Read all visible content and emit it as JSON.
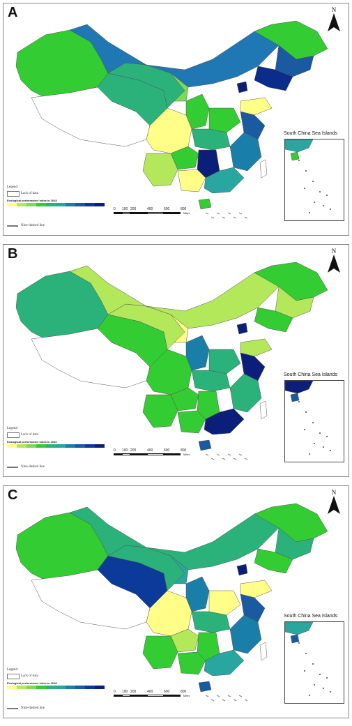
{
  "panels": [
    {
      "letter": "A",
      "legend_title": "Ecological performance index in 2015",
      "colors": {
        "xinjiang": "#33cc33",
        "tibet": "#ffffff",
        "qinghai": "#2ab27a",
        "gansu": "#2ab27a",
        "inner_mongolia": "#1f78b4",
        "heilongjiang": "#33cc33",
        "jilin": "#1a5aa0",
        "liaoning": "#0b2c8a",
        "sichuan": "#ffff88",
        "yunnan": "#b2e85a",
        "guangxi": "#ffff88",
        "guizhou": "#33cc33",
        "hunan": "#0b1f7a",
        "guangdong": "#2aa6a0",
        "hainan": "#33cc33",
        "east": "#1a7fa8",
        "shandong": "#ffff88",
        "jiangsu": "#1a5aa0",
        "taiwan": "#ffffff",
        "ningxia": "#7ed957",
        "shaanxi": "#33cc33",
        "henan": "#33cc33",
        "hubei": "#2ab27a",
        "beijing": "#0b1f7a"
      }
    },
    {
      "letter": "B",
      "legend_title": "Ecological performance index in 2016",
      "colors": {
        "xinjiang": "#2ab27a",
        "tibet": "#ffffff",
        "qinghai": "#33cc33",
        "gansu": "#b2e85a",
        "inner_mongolia": "#b2e85a",
        "heilongjiang": "#33cc33",
        "jilin": "#b2e85a",
        "liaoning": "#33cc33",
        "sichuan": "#33cc33",
        "yunnan": "#33cc33",
        "guangxi": "#33cc33",
        "guizhou": "#33cc33",
        "hunan": "#33cc33",
        "guangdong": "#0b1f7a",
        "hainan": "#1a5aa0",
        "east": "#2ab27a",
        "shandong": "#b2e85a",
        "jiangsu": "#0b1f7a",
        "taiwan": "#ffffff",
        "ningxia": "#ffff88",
        "shaanxi": "#1a7fa8",
        "henan": "#2ab27a",
        "hubei": "#2ab27a",
        "beijing": "#0b1f7a"
      }
    },
    {
      "letter": "C",
      "legend_title": "Ecological performance index in 2018",
      "colors": {
        "xinjiang": "#33cc33",
        "tibet": "#ffffff",
        "qinghai": "#0b3a9a",
        "gansu": "#2ab27a",
        "inner_mongolia": "#2ab27a",
        "heilongjiang": "#33cc33",
        "jilin": "#2ab27a",
        "liaoning": "#33cc33",
        "sichuan": "#ffff88",
        "yunnan": "#33cc33",
        "guangxi": "#33cc33",
        "guizhou": "#b2e85a",
        "hunan": "#33cc33",
        "guangdong": "#2aa6a0",
        "hainan": "#1a5aa0",
        "east": "#1a7fa8",
        "shandong": "#ffff88",
        "jiangsu": "#1a5aa0",
        "taiwan": "#ffffff",
        "ningxia": "#2aa6a0",
        "shaanxi": "#1a7fa8",
        "henan": "#ffff88",
        "hubei": "#2ab27a",
        "beijing": "#0b1f7a"
      }
    }
  ],
  "north_label": "N",
  "inset_title": "South China Sea Islands",
  "legend": {
    "heading": "Legend",
    "no_data_label": "Lack of data",
    "line_label": "Nine-dashed line",
    "ramp_colors": [
      "#ffff88",
      "#b2e85a",
      "#7ed957",
      "#33cc33",
      "#2ab27a",
      "#2aa6a0",
      "#1a7fa8",
      "#1a5aa0",
      "#0b3a9a",
      "#0b1f7a"
    ]
  },
  "scale": {
    "labels": [
      "0",
      "100",
      "200",
      "400",
      "600",
      "800"
    ],
    "unit": "Miles"
  }
}
